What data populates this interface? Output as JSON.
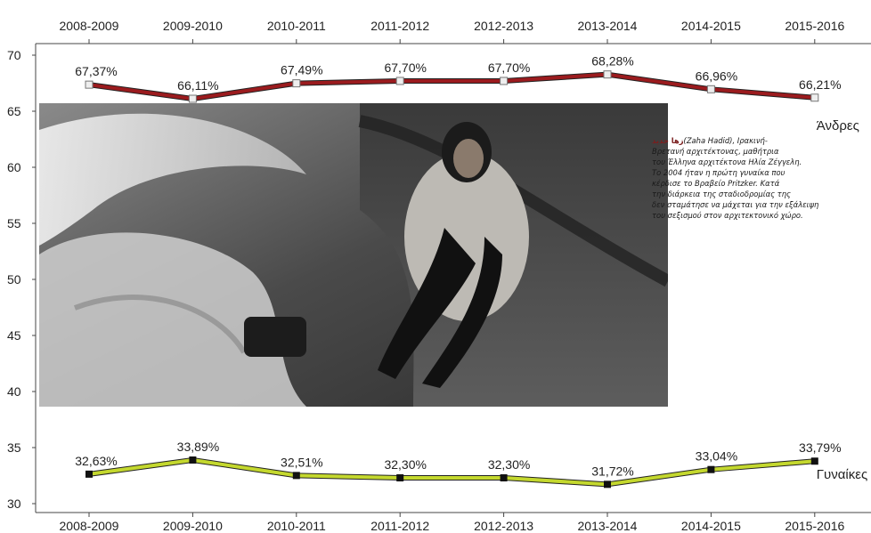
{
  "chart_data": {
    "type": "line",
    "categories": [
      "2008-2009",
      "2009-2010",
      "2010-2011",
      "2011-2012",
      "2012-2013",
      "2013-2014",
      "2014-2015",
      "2015-2016"
    ],
    "series": [
      {
        "name": "Άνδρες",
        "values": [
          67.37,
          66.11,
          67.49,
          67.7,
          67.7,
          68.28,
          66.96,
          66.21
        ],
        "labels": [
          "67,37%",
          "66,11%",
          "67,49%",
          "67,70%",
          "67,70%",
          "68,28%",
          "66,96%",
          "66,21%"
        ],
        "color": "#9b1b1e",
        "marker": "hollow-square"
      },
      {
        "name": "Γυναίκες",
        "values": [
          32.63,
          33.89,
          32.51,
          32.3,
          32.3,
          31.72,
          33.04,
          33.79
        ],
        "labels": [
          "32,63%",
          "33,89%",
          "32,51%",
          "32,30%",
          "32,30%",
          "31,72%",
          "33,04%",
          "33,79%"
        ],
        "color": "#c4d82e",
        "marker": "filled-square"
      }
    ],
    "yticks": [
      30,
      35,
      40,
      45,
      50,
      55,
      60,
      65,
      70
    ],
    "ylim": [
      30,
      70
    ],
    "grid": false,
    "xlabels_top_and_bottom": true
  },
  "photo": {
    "subject": "woman seated on sculpted bench"
  },
  "caption": {
    "arabic_name": "زها حديد",
    "text": "(Zaha Hadid), Ιρακινή-\nΒρετανή αρχιτέκτονας, μαθήτρια\nτου Έλληνα αρχιτέκτονα Ηλία Ζέγγελη.\nΤο 2004 ήταν η πρώτη γυναίκα που\nκέρδισε το Βραβείο Pritzker. Κατά\nτην διάρκεια της σταδιοδρομίας της\nδεν σταμάτησε να μάχεται για την εξάλειψη\nτου σεξισμού στον αρχιτεκτονικό χώρο."
  }
}
